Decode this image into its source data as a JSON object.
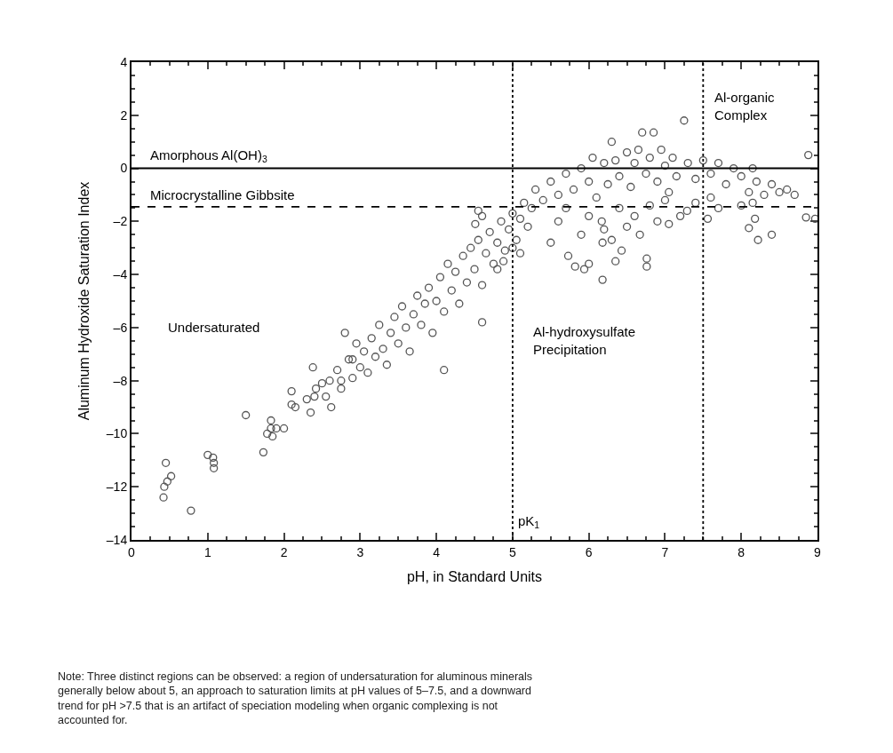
{
  "chart_data": {
    "type": "scatter",
    "xlabel": "pH, in Standard Units",
    "ylabel": "Aluminum Hydroxide Saturation Index",
    "xlim": [
      0,
      9
    ],
    "ylim": [
      -14,
      4
    ],
    "xticks": [
      0,
      1,
      2,
      3,
      4,
      5,
      6,
      7,
      8,
      9
    ],
    "yticks": [
      {
        "value": -14,
        "label": "–14"
      },
      {
        "value": -12,
        "label": "–12"
      },
      {
        "value": -10,
        "label": "–10"
      },
      {
        "value": -8,
        "label": "–8"
      },
      {
        "value": -6,
        "label": "–6"
      },
      {
        "value": -4,
        "label": "–4"
      },
      {
        "value": -2,
        "label": "–2"
      },
      0,
      2,
      4
    ],
    "marker": "circle",
    "series": [
      {
        "color": "#555555",
        "x": [
          0.42,
          0.43,
          0.47,
          0.52,
          0.45,
          0.78,
          1.0,
          1.07,
          1.08,
          1.08,
          1.5,
          1.73,
          1.78,
          1.83,
          1.85,
          1.9,
          1.83,
          2.0,
          2.1,
          2.1,
          2.15,
          2.3,
          2.35,
          2.38,
          2.4,
          2.42,
          2.5,
          2.55,
          2.62,
          2.75,
          2.8,
          2.9,
          2.6,
          2.7,
          2.75,
          2.85,
          2.9,
          2.95,
          3.0,
          3.05,
          3.1,
          3.15,
          3.2,
          3.25,
          3.3,
          3.35,
          3.4,
          3.45,
          3.5,
          3.55,
          3.6,
          3.65,
          3.7,
          3.75,
          3.8,
          3.85,
          3.9,
          3.95,
          4.0,
          4.05,
          4.1,
          4.15,
          4.2,
          4.25,
          4.3,
          4.35,
          4.4,
          4.45,
          4.5,
          4.55,
          4.6,
          4.65,
          4.7,
          4.75,
          4.8,
          4.85,
          4.9,
          4.95,
          5.0,
          5.05,
          5.1,
          5.15,
          5.2,
          5.25,
          4.55,
          4.6,
          5.0,
          5.1,
          4.1,
          4.6,
          4.51,
          4.8,
          4.88,
          5.3,
          5.4,
          5.5,
          5.6,
          5.7,
          5.8,
          5.9,
          6.0,
          6.05,
          6.1,
          6.2,
          6.25,
          6.3,
          6.35,
          6.4,
          6.5,
          6.55,
          6.6,
          6.65,
          6.7,
          6.75,
          6.8,
          6.85,
          6.9,
          6.95,
          7.0,
          7.05,
          7.1,
          7.15,
          7.25,
          7.3,
          7.4,
          7.5,
          7.6,
          7.7,
          7.8,
          7.9,
          8.0,
          8.1,
          8.15,
          8.2,
          8.3,
          8.4,
          8.5,
          8.6,
          8.7,
          8.88,
          8.85,
          8.97,
          8.22,
          8.4,
          8.1,
          5.5,
          5.73,
          5.82,
          5.94,
          6.18,
          6.18,
          6.76,
          6.76,
          6.35,
          6.0,
          6.43,
          6.17,
          6.67,
          7.05,
          7.29,
          7.56,
          8.18,
          6.0,
          6.2,
          6.4,
          6.5,
          6.6,
          6.8,
          6.9,
          7.0,
          7.2,
          6.3,
          5.9,
          5.6,
          5.7,
          7.4,
          7.6,
          7.7,
          8.0,
          8.15
        ],
        "values": [
          -12.4,
          -12.0,
          -11.8,
          -11.6,
          -11.1,
          -12.9,
          -10.8,
          -10.9,
          -11.1,
          -11.3,
          -9.3,
          -10.7,
          -10.0,
          -9.8,
          -10.1,
          -9.8,
          -9.5,
          -9.8,
          -8.9,
          -8.4,
          -9.0,
          -8.7,
          -9.2,
          -7.5,
          -8.6,
          -8.3,
          -8.1,
          -8.6,
          -9.0,
          -8.0,
          -6.2,
          -7.2,
          -8.0,
          -7.6,
          -8.3,
          -7.2,
          -7.9,
          -6.6,
          -7.5,
          -6.9,
          -7.7,
          -6.4,
          -7.1,
          -5.9,
          -6.8,
          -7.4,
          -6.2,
          -5.6,
          -6.6,
          -5.2,
          -6.0,
          -6.9,
          -5.5,
          -4.8,
          -5.9,
          -5.1,
          -4.5,
          -6.2,
          -5.0,
          -4.1,
          -5.4,
          -3.6,
          -4.6,
          -3.9,
          -5.1,
          -3.3,
          -4.3,
          -3.0,
          -3.8,
          -2.7,
          -4.4,
          -3.2,
          -2.4,
          -3.6,
          -2.8,
          -2.0,
          -3.1,
          -2.3,
          -1.7,
          -2.7,
          -1.9,
          -1.3,
          -2.2,
          -1.5,
          -1.6,
          -1.8,
          -3.0,
          -3.2,
          -7.6,
          -5.8,
          -2.1,
          -3.8,
          -3.5,
          -0.8,
          -1.2,
          -0.5,
          -1.0,
          -0.2,
          -0.8,
          0.0,
          -0.5,
          0.4,
          -1.1,
          0.2,
          -0.6,
          1.0,
          0.3,
          -0.3,
          0.6,
          -0.7,
          0.2,
          0.7,
          1.35,
          -0.2,
          0.4,
          1.35,
          -0.5,
          0.7,
          0.1,
          -0.9,
          0.4,
          -0.3,
          1.8,
          0.2,
          -0.4,
          0.3,
          -0.2,
          0.2,
          -0.6,
          0.0,
          -0.3,
          -0.9,
          0.0,
          -0.5,
          -1.0,
          -0.6,
          -0.9,
          -0.8,
          -1.0,
          0.5,
          -1.85,
          -1.9,
          -2.7,
          -2.5,
          -2.25,
          -2.8,
          -3.3,
          -3.7,
          -3.8,
          -4.2,
          -2.8,
          -3.4,
          -3.7,
          -3.5,
          -3.6,
          -3.1,
          -2.0,
          -2.5,
          -2.1,
          -1.6,
          -1.9,
          -1.9,
          -1.8,
          -2.3,
          -1.5,
          -2.2,
          -1.8,
          -1.4,
          -2.0,
          -1.2,
          -1.8,
          -2.7,
          -2.5,
          -2.0,
          -1.5,
          -1.3,
          -1.1,
          -1.5,
          -1.4,
          -1.3
        ]
      }
    ],
    "ref_lines": [
      {
        "axis": "y",
        "value": 0,
        "label": "Amorphous Al(OH)$_{3}$",
        "color": "#000000",
        "line_style": "solid"
      },
      {
        "axis": "y",
        "value": -1.45,
        "label": "Microcrystalline Gibbsite",
        "color": "#000000",
        "line_style": "dashed"
      },
      {
        "axis": "x",
        "value": 5,
        "label": "pK$_{1}$",
        "color": "#000000",
        "line_style": "dotted"
      },
      {
        "axis": "x",
        "value": 7.5,
        "label": null,
        "color": "#000000",
        "line_style": "dotted"
      }
    ],
    "annotations": [
      "Undersaturated",
      "Al-hydroxysulfate\nPrecipitation",
      "Al-organic\nComplex",
      "Note: Three distinct regions can be observed: a region of undersaturation for aluminous minerals generally below about 5, an approach to saturation limits at pH values of 5–7.5, and a downward trend for pH >7.5 that is an artifact of speciation modeling when organic complexing is not accounted for."
    ]
  }
}
